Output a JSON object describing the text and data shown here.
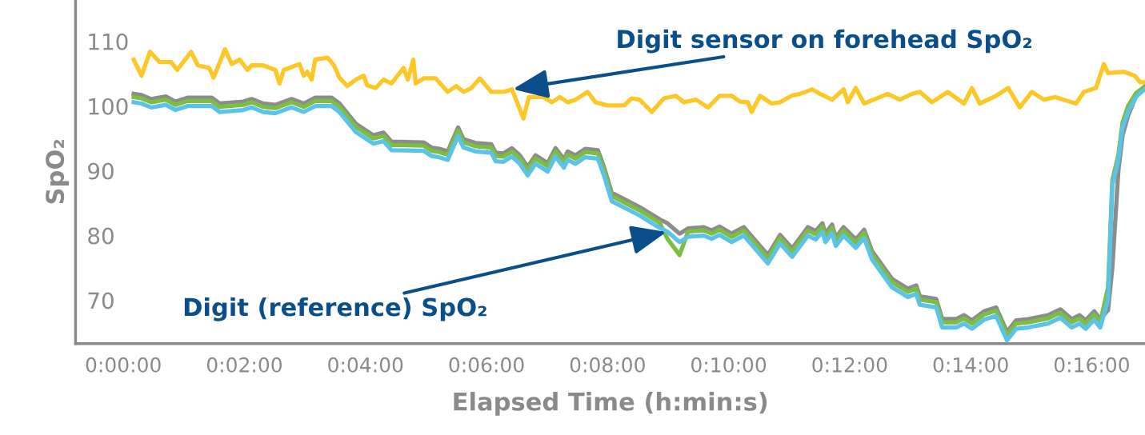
{
  "chart_data": {
    "type": "line",
    "xlabel": "Elapsed Time (h:min:s)",
    "ylabel": "SpO₂",
    "xlim": [
      -0.79,
      16.88
    ],
    "ylim": [
      63.3,
      116.4
    ],
    "xticks": [
      {
        "value": 0,
        "label": "0:00:00"
      },
      {
        "value": 2,
        "label": "0:02:00"
      },
      {
        "value": 4,
        "label": "0:04:00"
      },
      {
        "value": 6,
        "label": "0:06:00"
      },
      {
        "value": 8,
        "label": "0:08:00"
      },
      {
        "value": 10,
        "label": "0:10:00"
      },
      {
        "value": 12,
        "label": "0:12:00"
      },
      {
        "value": 14,
        "label": "0:14:00"
      },
      {
        "value": 16,
        "label": "0:16:00"
      }
    ],
    "yticks": [
      70,
      80,
      90,
      100,
      110
    ],
    "grid": false,
    "legend": false,
    "marker": "none",
    "line_style": "solid",
    "x": [
      0.17,
      0.3,
      0.46,
      0.7,
      0.86,
      1.06,
      1.46,
      1.59,
      1.98,
      2.12,
      2.31,
      2.51,
      2.78,
      2.98,
      3.17,
      3.44,
      3.57,
      3.84,
      4.13,
      4.3,
      4.43,
      4.96,
      5.09,
      5.22,
      5.36,
      5.53,
      5.62,
      5.82,
      6.08,
      6.15,
      6.28,
      6.42,
      6.55,
      6.68,
      6.81,
      7.01,
      7.14,
      7.28,
      7.34,
      7.47,
      7.63,
      7.84,
      7.94,
      8.07,
      8.53,
      8.86,
      8.99,
      9.19,
      9.33,
      9.59,
      9.72,
      9.85,
      10.05,
      10.25,
      10.65,
      10.85,
      11.05,
      11.31,
      11.44,
      11.55,
      11.6,
      11.71,
      11.77,
      11.9,
      12.1,
      12.24,
      12.37,
      12.7,
      12.96,
      13.1,
      13.16,
      13.43,
      13.53,
      13.76,
      13.89,
      14.02,
      14.22,
      14.42,
      14.6,
      14.75,
      14.95,
      15.28,
      15.48,
      15.67,
      15.8,
      15.9,
      16.04,
      16.14,
      16.27,
      16.34,
      16.44,
      16.51,
      16.6,
      16.73,
      16.87
    ],
    "series": [
      {
        "color": "#8c8c8c",
        "values": [
          101.9,
          101.7,
          101.1,
          101.5,
          100.7,
          101.3,
          101.3,
          100.4,
          100.7,
          101.1,
          100.4,
          100.2,
          101.1,
          100.4,
          101.3,
          101.3,
          100.4,
          97.3,
          95.5,
          95.9,
          94.5,
          94.4,
          93.6,
          93.4,
          93.0,
          96.7,
          94.9,
          94.3,
          94.1,
          92.8,
          92.7,
          93.5,
          92.4,
          90.6,
          92.4,
          91.2,
          93.5,
          91.8,
          93.0,
          92.4,
          93.4,
          93.2,
          90.6,
          86.6,
          84.4,
          82.5,
          81.9,
          80.3,
          81.1,
          81.3,
          80.8,
          81.4,
          80.3,
          81.3,
          77.0,
          80.1,
          78.0,
          81.3,
          80.7,
          81.9,
          80.3,
          81.7,
          79.7,
          81.3,
          79.4,
          80.9,
          77.6,
          73.3,
          71.8,
          72.3,
          70.6,
          70.2,
          67.1,
          67.1,
          67.7,
          66.9,
          68.3,
          68.9,
          65.1,
          66.9,
          67.1,
          67.7,
          68.6,
          67.1,
          67.7,
          66.9,
          68.3,
          67.1,
          68.5,
          75.0,
          90.0,
          95.5,
          98.5,
          101.5,
          103.0
        ]
      },
      {
        "color": "#7cbd42",
        "values": [
          101.4,
          101.2,
          100.6,
          101.0,
          100.2,
          100.8,
          100.8,
          99.9,
          100.2,
          100.6,
          99.9,
          99.7,
          100.6,
          99.9,
          100.8,
          100.8,
          99.9,
          96.8,
          95.0,
          95.4,
          94.0,
          93.9,
          93.1,
          92.9,
          92.5,
          96.2,
          94.4,
          93.8,
          93.6,
          92.3,
          92.2,
          93.0,
          91.9,
          90.1,
          91.9,
          90.7,
          93.0,
          91.3,
          92.5,
          91.9,
          92.9,
          92.7,
          90.1,
          86.1,
          83.9,
          82.0,
          79.5,
          77.0,
          80.6,
          80.8,
          80.3,
          80.9,
          79.8,
          80.8,
          76.5,
          79.6,
          77.5,
          80.8,
          80.2,
          81.4,
          79.8,
          81.2,
          79.2,
          80.8,
          78.9,
          80.4,
          77.1,
          72.8,
          71.3,
          71.8,
          70.1,
          69.7,
          66.6,
          66.6,
          67.2,
          66.4,
          67.8,
          68.4,
          64.6,
          66.4,
          66.6,
          67.2,
          68.1,
          66.6,
          67.2,
          66.4,
          67.8,
          66.6,
          72.0,
          88.5,
          92.5,
          97.5,
          100.0,
          102.0,
          103.0
        ]
      },
      {
        "color": "#5bc3e8",
        "values": [
          100.6,
          100.4,
          99.8,
          100.2,
          99.4,
          100.0,
          100.0,
          99.1,
          99.4,
          99.8,
          99.1,
          98.9,
          99.8,
          99.1,
          100.0,
          100.0,
          99.1,
          96.0,
          94.2,
          94.6,
          93.2,
          93.1,
          92.3,
          92.1,
          91.7,
          95.4,
          93.6,
          93.0,
          92.8,
          91.5,
          91.4,
          92.2,
          91.1,
          89.3,
          91.1,
          89.9,
          92.2,
          90.5,
          91.7,
          91.1,
          92.1,
          91.9,
          89.3,
          85.3,
          83.1,
          81.2,
          80.6,
          79.0,
          79.8,
          80.0,
          79.5,
          80.1,
          79.0,
          80.0,
          75.7,
          78.8,
          76.7,
          80.0,
          79.4,
          80.6,
          79.0,
          80.4,
          78.4,
          80.0,
          78.1,
          79.6,
          76.3,
          72.0,
          70.5,
          71.0,
          69.3,
          68.9,
          65.8,
          65.8,
          66.4,
          65.6,
          67.0,
          67.6,
          63.8,
          65.6,
          65.8,
          66.4,
          67.3,
          65.8,
          66.4,
          65.6,
          67.0,
          65.8,
          70.1,
          87.8,
          91.7,
          96.7,
          99.1,
          101.4,
          102.6
        ]
      },
      {
        "color": "#fdc827",
        "x": [
          0.17,
          0.3,
          0.44,
          0.6,
          0.79,
          0.89,
          1.12,
          1.23,
          1.42,
          1.49,
          1.68,
          1.79,
          1.92,
          2.05,
          2.12,
          2.31,
          2.51,
          2.58,
          2.65,
          2.91,
          2.98,
          3.04,
          3.11,
          3.17,
          3.37,
          3.48,
          3.57,
          3.7,
          3.84,
          3.97,
          4.03,
          4.17,
          4.3,
          4.43,
          4.63,
          4.7,
          4.79,
          4.83,
          4.96,
          5.16,
          5.36,
          5.5,
          5.62,
          5.75,
          5.89,
          6.08,
          6.28,
          6.42,
          6.61,
          6.7,
          6.94,
          7.08,
          7.21,
          7.34,
          7.47,
          7.67,
          7.8,
          8.0,
          8.27,
          8.4,
          8.53,
          8.73,
          8.93,
          9.13,
          9.26,
          9.46,
          9.66,
          9.85,
          10.05,
          10.19,
          10.32,
          10.38,
          10.52,
          10.71,
          10.85,
          11.04,
          11.18,
          11.38,
          11.51,
          11.71,
          11.9,
          11.97,
          12.1,
          12.24,
          12.5,
          12.63,
          12.83,
          13.03,
          13.16,
          13.36,
          13.62,
          13.89,
          14.02,
          14.15,
          14.42,
          14.62,
          14.81,
          15.01,
          15.21,
          15.4,
          15.74,
          15.87,
          16.07,
          16.2,
          16.27,
          16.53,
          16.71,
          16.8,
          16.87
        ],
        "values": [
          107.2,
          104.7,
          108.4,
          106.8,
          106.8,
          105.6,
          108.4,
          106.3,
          105.9,
          104.4,
          108.8,
          106.5,
          107.2,
          105.6,
          106.3,
          106.3,
          105.6,
          103.5,
          105.6,
          106.5,
          104.7,
          105.3,
          104.1,
          107.2,
          107.5,
          106.3,
          104.4,
          103.1,
          104.1,
          104.7,
          103.2,
          102.8,
          104.1,
          103.5,
          105.9,
          104.1,
          107.2,
          103.5,
          104.3,
          104.3,
          102.2,
          103.1,
          102.2,
          102.8,
          104.3,
          102.2,
          102.2,
          102.6,
          98.1,
          101.4,
          101.4,
          100.6,
          101.4,
          100.6,
          101.0,
          102.2,
          100.6,
          100.1,
          100.1,
          101.2,
          101.0,
          99.1,
          101.2,
          101.6,
          100.6,
          101.0,
          99.8,
          101.6,
          101.6,
          100.7,
          100.6,
          99.1,
          101.6,
          100.4,
          100.6,
          101.6,
          101.9,
          102.6,
          101.9,
          101.0,
          102.6,
          100.6,
          102.8,
          100.4,
          101.4,
          101.9,
          101.0,
          101.9,
          102.2,
          100.6,
          102.2,
          100.4,
          102.8,
          100.4,
          101.6,
          102.8,
          99.8,
          102.2,
          101.0,
          101.4,
          100.4,
          102.2,
          102.8,
          106.5,
          105.1,
          105.3,
          104.7,
          103.7,
          103.7
        ]
      }
    ],
    "annotations": [
      {
        "text": "Digit sensor on forehead SpO₂",
        "x": 6.42,
        "y": 102.6
      },
      {
        "text": "Digit (reference) SpO₂",
        "x": 8.99,
        "y": 80.6
      }
    ]
  }
}
